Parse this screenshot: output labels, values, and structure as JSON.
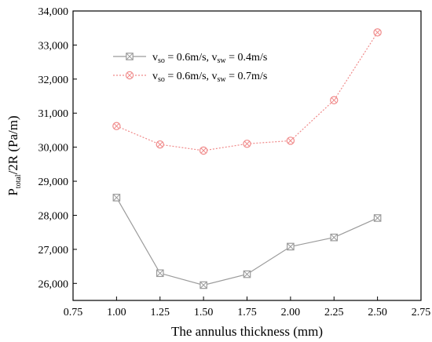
{
  "chart_data": {
    "type": "line",
    "title": "",
    "xlabel": "The annulus thickness (mm)",
    "ylabel": {
      "main1": "P",
      "sub1": "total",
      "main2": "/2R (Pa/m)"
    },
    "xlim": [
      0.75,
      2.75
    ],
    "ylim": [
      25500,
      34000
    ],
    "x_ticks": [
      0.75,
      1.0,
      1.25,
      1.5,
      1.75,
      2.0,
      2.25,
      2.5,
      2.75
    ],
    "x_tick_labels": [
      "0.75",
      "1.00",
      "1.25",
      "1.50",
      "1.75",
      "2.00",
      "2.25",
      "2.50",
      "2.75"
    ],
    "y_ticks": [
      26000,
      27000,
      28000,
      29000,
      30000,
      31000,
      32000,
      33000,
      34000
    ],
    "y_tick_labels": [
      "26,000",
      "27,000",
      "28,000",
      "29,000",
      "30,000",
      "31,000",
      "32,000",
      "33,000",
      "34,000"
    ],
    "grid": false,
    "legend_position": "top-left",
    "x": [
      1.0,
      1.25,
      1.5,
      1.75,
      2.0,
      2.25,
      2.5
    ],
    "series": [
      {
        "name": {
          "v1": "v",
          "s1": "so",
          "t1": " = 0.6m/s, ",
          "v2": "v",
          "s2": "sw",
          "t2": " = 0.4m/s"
        },
        "values": [
          28520,
          26300,
          25950,
          26270,
          27080,
          27350,
          27920
        ],
        "color": "#9a9a9a",
        "line_style": "solid",
        "marker": "boxed-x"
      },
      {
        "name": {
          "v1": "v",
          "s1": "so",
          "t1": " = 0.6m/s, ",
          "v2": "v",
          "s2": "sw",
          "t2": " = 0.7m/s"
        },
        "values": [
          30620,
          30080,
          29900,
          30100,
          30190,
          31380,
          33370
        ],
        "color": "#f08a8a",
        "line_style": "dotted",
        "marker": "circled-x"
      }
    ]
  }
}
